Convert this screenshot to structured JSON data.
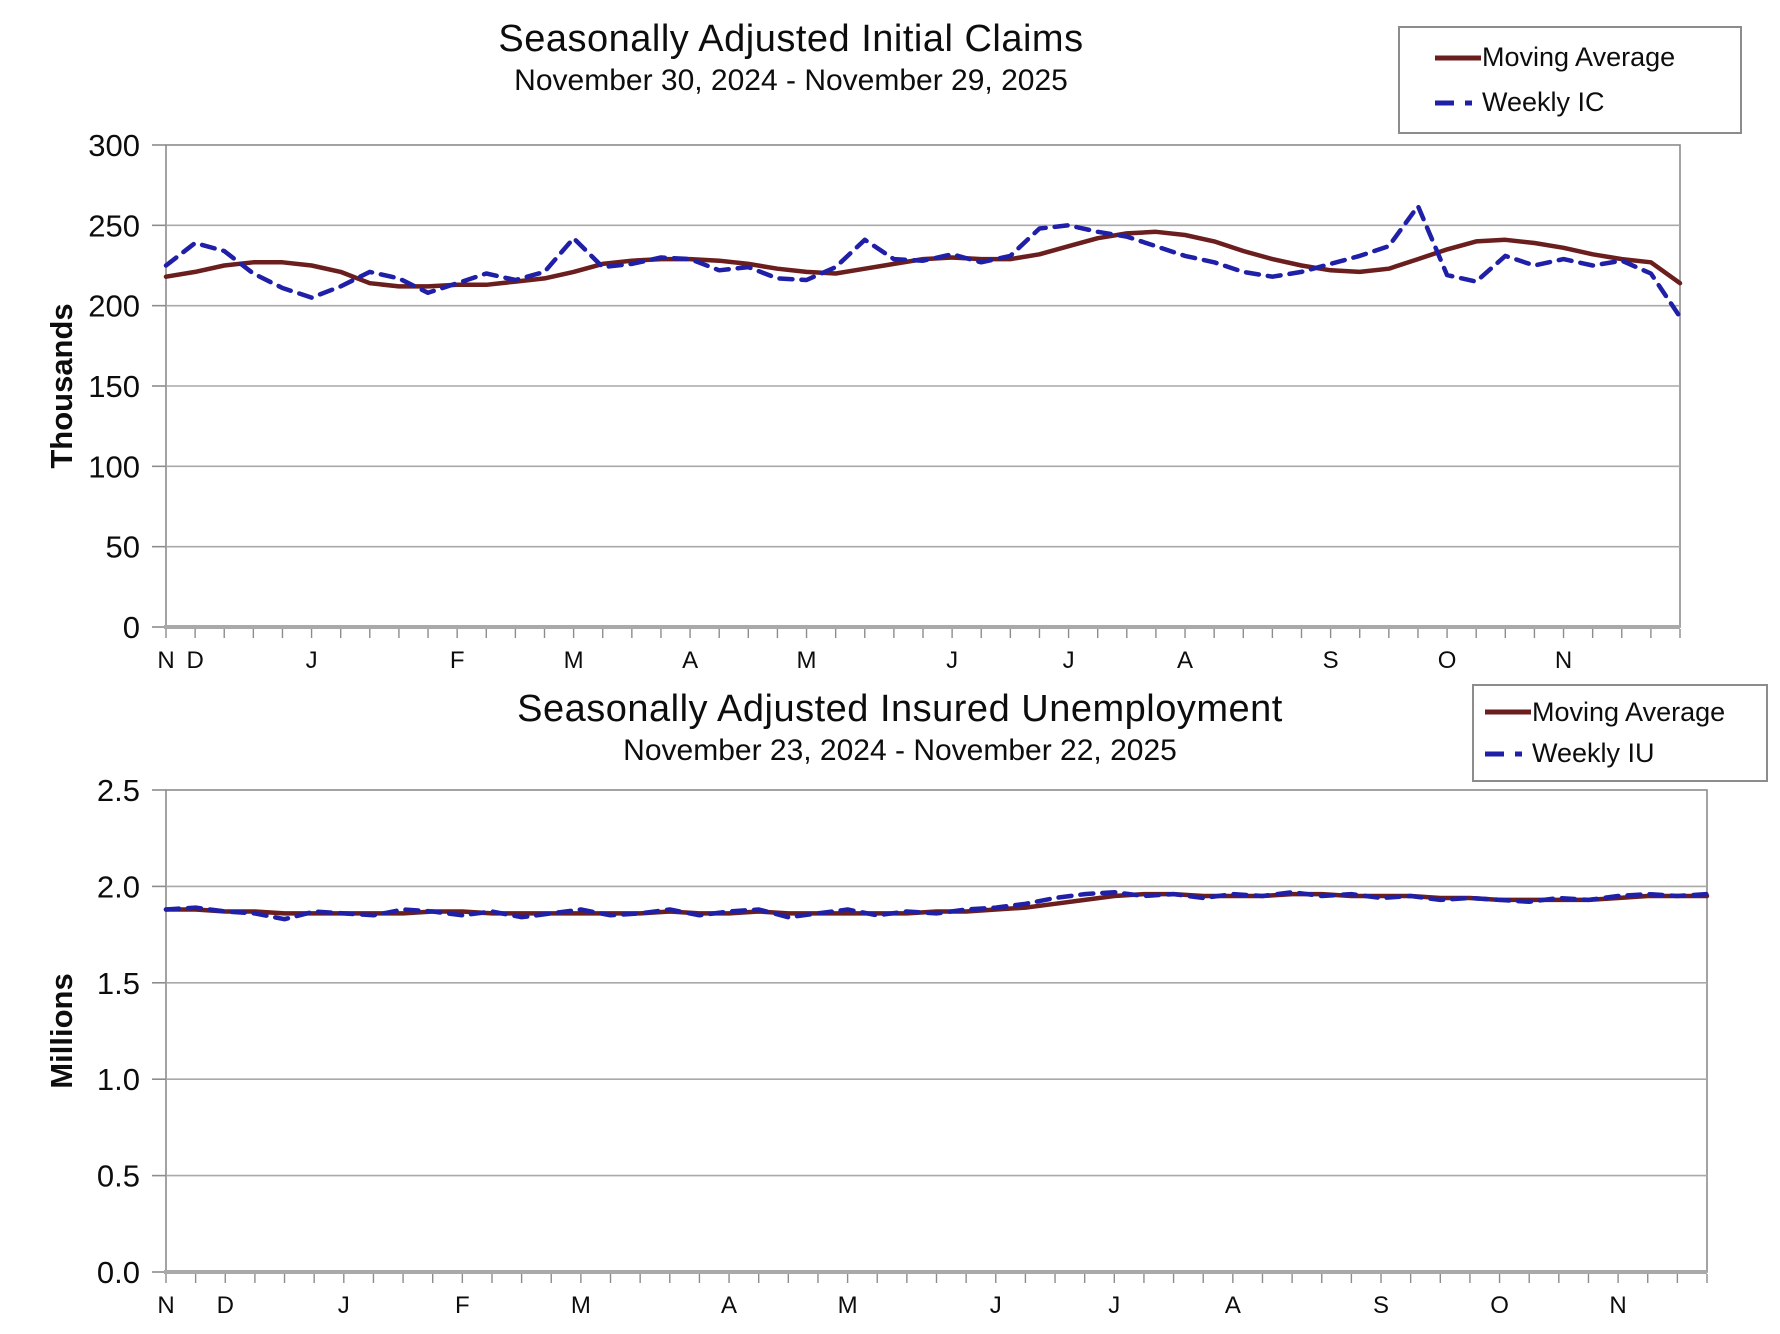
{
  "colors": {
    "moving_average": "#6B1E1E",
    "weekly": "#1F1FA8",
    "gridline": "#A9A9A9",
    "axis": "#8C8C8C",
    "text": "#0D0D0D"
  },
  "charts": [
    {
      "id": "ic",
      "title": "Seasonally Adjusted Initial Claims",
      "subtitle": "November 30, 2024 - November 29, 2025",
      "y_axis_label": "Thousands",
      "legend": [
        {
          "label": "Moving Average",
          "style": "solid",
          "color": "#6B1E1E"
        },
        {
          "label": "Weekly IC",
          "style": "dashed",
          "color": "#1F1FA8"
        }
      ],
      "chart_data": {
        "type": "line",
        "title": "Seasonally Adjusted Initial Claims",
        "subtitle": "November 30, 2024 - November 29, 2025",
        "ylabel": "Thousands",
        "ylim": [
          0,
          300
        ],
        "yticks": [
          {
            "label": "0",
            "value": 0
          },
          {
            "label": "50",
            "value": 50
          },
          {
            "label": "100",
            "value": 100
          },
          {
            "label": "150",
            "value": 150
          },
          {
            "label": "200",
            "value": 200
          },
          {
            "label": "250",
            "value": 250
          },
          {
            "label": "300",
            "value": 300
          }
        ],
        "grid": true,
        "legend_position": "top-right",
        "weeks": 53,
        "x_tick_labels": [
          "N",
          "D",
          "J",
          "F",
          "M",
          "A",
          "M",
          "J",
          "J",
          "A",
          "S",
          "O",
          "N"
        ],
        "x_tick_weeks": [
          0,
          1,
          5,
          10,
          14,
          18,
          22,
          27,
          31,
          35,
          40,
          44,
          48
        ],
        "series": [
          {
            "name": "Moving Average",
            "color": "#6B1E1E",
            "dash": null,
            "values": [
              218,
              221,
              225,
              227,
              227,
              225,
              221,
              214,
              212,
              212,
              213,
              213,
              215,
              217,
              221,
              226,
              228,
              229,
              229,
              228,
              226,
              223,
              221,
              220,
              223,
              226,
              229,
              230,
              229,
              229,
              232,
              237,
              242,
              245,
              246,
              244,
              240,
              234,
              229,
              225,
              222,
              221,
              223,
              229,
              235,
              240,
              241,
              239,
              236,
              232,
              229,
              227,
              214
            ]
          },
          {
            "name": "Weekly IC",
            "color": "#1F1FA8",
            "dash": [
              13,
              9
            ],
            "values": [
              225,
              239,
              234,
              220,
              211,
              205,
              212,
              221,
              217,
              208,
              214,
              220,
              216,
              221,
              242,
              224,
              226,
              230,
              229,
              222,
              224,
              217,
              216,
              224,
              241,
              229,
              228,
              232,
              227,
              231,
              248,
              250,
              246,
              243,
              237,
              231,
              227,
              221,
              218,
              221,
              226,
              231,
              237,
              262,
              219,
              215,
              231,
              225,
              229,
              225,
              228,
              220,
              193
            ]
          }
        ]
      }
    },
    {
      "id": "iu",
      "title": "Seasonally Adjusted Insured Unemployment",
      "subtitle": "November 23, 2024 - November 22, 2025",
      "y_axis_label": "Millions",
      "legend": [
        {
          "label": "Moving Average",
          "style": "solid",
          "color": "#6B1E1E"
        },
        {
          "label": "Weekly IU",
          "style": "dashed",
          "color": "#1F1FA8"
        }
      ],
      "chart_data": {
        "type": "line",
        "title": "Seasonally Adjusted Insured Unemployment",
        "subtitle": "November 23, 2024 - November 22, 2025",
        "ylabel": "Millions",
        "ylim": [
          0,
          2.5
        ],
        "yticks": [
          {
            "label": "0.0",
            "value": 0
          },
          {
            "label": "0.5",
            "value": 0.5
          },
          {
            "label": "1.0",
            "value": 1.0
          },
          {
            "label": "1.5",
            "value": 1.5
          },
          {
            "label": "2.0",
            "value": 2.0
          },
          {
            "label": "2.5",
            "value": 2.5
          }
        ],
        "grid": true,
        "legend_position": "top-right",
        "weeks": 53,
        "x_tick_labels": [
          "N",
          "D",
          "J",
          "F",
          "M",
          "A",
          "M",
          "J",
          "J",
          "A",
          "S",
          "O",
          "N"
        ],
        "x_tick_weeks": [
          0,
          2,
          6,
          10,
          14,
          19,
          23,
          28,
          32,
          36,
          41,
          45,
          49
        ],
        "series": [
          {
            "name": "Moving Average",
            "color": "#6B1E1E",
            "dash": null,
            "values": [
              1.88,
              1.88,
              1.87,
              1.87,
              1.86,
              1.86,
              1.86,
              1.86,
              1.86,
              1.87,
              1.87,
              1.86,
              1.86,
              1.86,
              1.86,
              1.86,
              1.86,
              1.87,
              1.86,
              1.86,
              1.87,
              1.86,
              1.86,
              1.86,
              1.86,
              1.86,
              1.87,
              1.87,
              1.88,
              1.89,
              1.91,
              1.93,
              1.95,
              1.96,
              1.96,
              1.95,
              1.95,
              1.95,
              1.96,
              1.96,
              1.95,
              1.95,
              1.95,
              1.94,
              1.94,
              1.93,
              1.93,
              1.93,
              1.93,
              1.94,
              1.95,
              1.95,
              1.95
            ]
          },
          {
            "name": "Weekly IU",
            "color": "#1F1FA8",
            "dash": [
              13,
              9
            ],
            "values": [
              1.88,
              1.89,
              1.87,
              1.86,
              1.83,
              1.87,
              1.86,
              1.85,
              1.88,
              1.87,
              1.85,
              1.87,
              1.84,
              1.86,
              1.88,
              1.85,
              1.86,
              1.88,
              1.85,
              1.87,
              1.88,
              1.84,
              1.86,
              1.88,
              1.85,
              1.87,
              1.86,
              1.88,
              1.89,
              1.91,
              1.94,
              1.96,
              1.97,
              1.95,
              1.96,
              1.94,
              1.96,
              1.95,
              1.97,
              1.95,
              1.96,
              1.94,
              1.95,
              1.93,
              1.94,
              1.93,
              1.92,
              1.94,
              1.93,
              1.95,
              1.96,
              1.95,
              1.96
            ]
          }
        ]
      }
    }
  ]
}
